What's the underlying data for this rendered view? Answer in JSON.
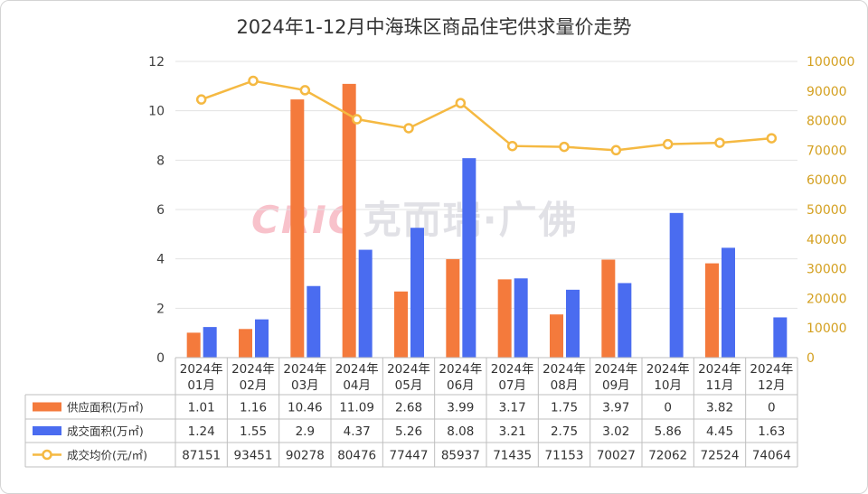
{
  "title": "2024年1-12月中海珠区商品住宅供求量价走势",
  "watermark": {
    "brand": "CRIC",
    "name": "克而瑞·广佛"
  },
  "colors": {
    "supply": "#f47a3c",
    "deal": "#4a6cf0",
    "price": "#f5b942",
    "axis_right": "#d4a020"
  },
  "chart_data": {
    "type": "bar",
    "categories": [
      [
        "2024年",
        "01月"
      ],
      [
        "2024年",
        "02月"
      ],
      [
        "2024年",
        "03月"
      ],
      [
        "2024年",
        "04月"
      ],
      [
        "2024年",
        "05月"
      ],
      [
        "2024年",
        "06月"
      ],
      [
        "2024年",
        "07月"
      ],
      [
        "2024年",
        "08月"
      ],
      [
        "2024年",
        "09月"
      ],
      [
        "2024年",
        "10月"
      ],
      [
        "2024年",
        "11月"
      ],
      [
        "2024年",
        "12月"
      ]
    ],
    "series": [
      {
        "name": "供应面积(万㎡)",
        "type": "bar",
        "axis": "left",
        "values": [
          1.01,
          1.16,
          10.46,
          11.09,
          2.68,
          3.99,
          3.17,
          1.75,
          3.97,
          0,
          3.82,
          0
        ],
        "labels": [
          "1.01",
          "1.16",
          "10.46",
          "11.09",
          "2.68",
          "3.99",
          "3.17",
          "1.75",
          "3.97",
          "0",
          "3.82",
          "0"
        ]
      },
      {
        "name": "成交面积(万㎡)",
        "type": "bar",
        "axis": "left",
        "values": [
          1.24,
          1.55,
          2.9,
          4.37,
          5.26,
          8.08,
          3.21,
          2.75,
          3.02,
          5.86,
          4.45,
          1.63
        ],
        "labels": [
          "1.24",
          "1.55",
          "2.9",
          "4.37",
          "5.26",
          "8.08",
          "3.21",
          "2.75",
          "3.02",
          "5.86",
          "4.45",
          "1.63"
        ]
      },
      {
        "name": "成交均价(元/㎡)",
        "type": "line",
        "axis": "right",
        "values": [
          87151,
          93451,
          90278,
          80476,
          77447,
          85937,
          71435,
          71153,
          70027,
          72062,
          72524,
          74064
        ],
        "labels": [
          "87151",
          "93451",
          "90278",
          "80476",
          "77447",
          "85937",
          "71435",
          "71153",
          "70027",
          "72062",
          "72524",
          "74064"
        ]
      }
    ],
    "y_left": {
      "min": 0,
      "max": 12,
      "ticks": [
        "0",
        "2",
        "4",
        "6",
        "8",
        "10",
        "12"
      ]
    },
    "y_right": {
      "min": 0,
      "max": 100000,
      "ticks": [
        "0",
        "10000",
        "20000",
        "30000",
        "40000",
        "50000",
        "60000",
        "70000",
        "80000",
        "90000",
        "100000"
      ]
    },
    "grid": true,
    "legend": "data-table"
  }
}
